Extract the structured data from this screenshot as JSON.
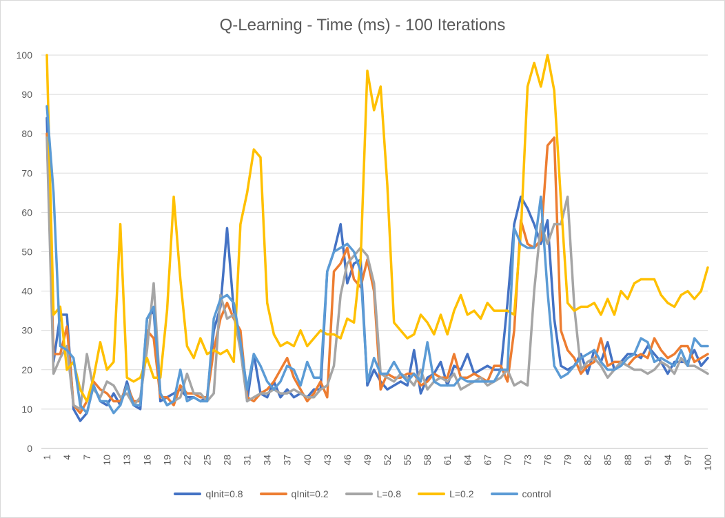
{
  "chart_data": {
    "type": "line",
    "title": "Q-Learning - Time (ms) - 100 Iterations",
    "xlabel": "",
    "ylabel": "",
    "ylim": [
      0,
      100
    ],
    "yticks": [
      0,
      10,
      20,
      30,
      40,
      50,
      60,
      70,
      80,
      90,
      100
    ],
    "xtick_labels": [
      "1",
      "4",
      "7",
      "10",
      "13",
      "16",
      "19",
      "22",
      "25",
      "28",
      "31",
      "34",
      "37",
      "40",
      "43",
      "46",
      "49",
      "52",
      "55",
      "58",
      "61",
      "64",
      "67",
      "70",
      "73",
      "76",
      "79",
      "82",
      "85",
      "88",
      "91",
      "94",
      "97",
      "100"
    ],
    "grid": "horizontal",
    "legend_position": "bottom",
    "x": [
      1,
      2,
      3,
      4,
      5,
      6,
      7,
      8,
      9,
      10,
      11,
      12,
      13,
      14,
      15,
      16,
      17,
      18,
      19,
      20,
      21,
      22,
      23,
      24,
      25,
      26,
      27,
      28,
      29,
      30,
      31,
      32,
      33,
      34,
      35,
      36,
      37,
      38,
      39,
      40,
      41,
      42,
      43,
      44,
      45,
      46,
      47,
      48,
      49,
      50,
      51,
      52,
      53,
      54,
      55,
      56,
      57,
      58,
      59,
      60,
      61,
      62,
      63,
      64,
      65,
      66,
      67,
      68,
      69,
      70,
      71,
      72,
      73,
      74,
      75,
      76,
      77,
      78,
      79,
      80,
      81,
      82,
      83,
      84,
      85,
      86,
      87,
      88,
      89,
      90,
      91,
      92,
      93,
      94,
      95,
      96,
      97,
      98,
      99,
      100
    ],
    "series": [
      {
        "name": "qInit=0.8",
        "color": "#4472C4",
        "values": [
          84,
          22,
          34,
          34,
          10,
          7,
          9,
          16,
          12,
          11,
          14,
          11,
          17,
          11,
          10,
          33,
          35,
          12,
          13,
          14,
          15,
          13,
          13,
          12,
          13,
          30,
          36,
          56,
          35,
          28,
          12,
          24,
          14,
          13,
          17,
          13,
          15,
          13,
          14,
          13,
          15,
          15,
          45,
          50,
          57,
          42,
          47,
          48,
          16,
          20,
          17,
          15,
          16,
          17,
          16,
          25,
          14,
          18,
          19,
          22,
          16,
          21,
          20,
          24,
          19,
          20,
          21,
          20,
          20,
          37,
          57,
          64,
          61,
          57,
          52,
          58,
          33,
          21,
          20,
          21,
          24,
          19,
          25,
          22,
          27,
          20,
          22,
          24,
          24,
          23,
          26,
          24,
          22,
          19,
          22,
          22,
          22,
          25,
          21,
          23
        ]
      },
      {
        "name": "qInit=0.2",
        "color": "#ED7D31",
        "values": [
          80,
          24,
          24,
          31,
          11,
          9,
          12,
          17,
          15,
          14,
          12,
          12,
          16,
          12,
          12,
          30,
          28,
          13,
          13,
          11,
          16,
          14,
          14,
          13,
          13,
          25,
          33,
          37,
          33,
          30,
          13,
          12,
          14,
          15,
          17,
          20,
          23,
          18,
          15,
          12,
          14,
          17,
          13,
          45,
          47,
          51,
          43,
          41,
          48,
          40,
          15,
          19,
          18,
          18,
          19,
          19,
          16,
          17,
          19,
          18,
          18,
          24,
          18,
          18,
          19,
          18,
          17,
          21,
          21,
          17,
          30,
          58,
          52,
          51,
          53,
          77,
          79,
          30,
          25,
          23,
          19,
          21,
          22,
          28,
          21,
          22,
          22,
          21,
          23,
          24,
          23,
          28,
          25,
          23,
          24,
          26,
          26,
          22,
          23,
          24
        ]
      },
      {
        "name": "L=0.8",
        "color": "#A5A5A5",
        "values": [
          79,
          19,
          23,
          26,
          11,
          10,
          24,
          15,
          13,
          17,
          16,
          13,
          14,
          11,
          13,
          25,
          42,
          14,
          11,
          12,
          13,
          19,
          14,
          14,
          12,
          14,
          39,
          33,
          34,
          25,
          12,
          13,
          14,
          14,
          15,
          14,
          14,
          15,
          14,
          13,
          13,
          15,
          16,
          21,
          39,
          47,
          49,
          51,
          49,
          42,
          19,
          18,
          17,
          19,
          18,
          16,
          20,
          15,
          17,
          18,
          17,
          19,
          15,
          16,
          17,
          18,
          16,
          17,
          18,
          20,
          16,
          17,
          16,
          40,
          57,
          52,
          57,
          57,
          64,
          36,
          20,
          22,
          23,
          21,
          18,
          20,
          22,
          21,
          20,
          20,
          19,
          20,
          22,
          21,
          19,
          23,
          21,
          21,
          20,
          19
        ]
      },
      {
        "name": "L=0.2",
        "color": "#FFC000",
        "values": [
          100,
          34,
          36,
          20,
          22,
          15,
          12,
          18,
          27,
          20,
          22,
          57,
          18,
          17,
          18,
          23,
          18,
          18,
          35,
          64,
          43,
          26,
          23,
          28,
          24,
          25,
          24,
          25,
          22,
          57,
          65,
          76,
          74,
          37,
          29,
          26,
          27,
          26,
          30,
          26,
          28,
          30,
          29,
          29,
          28,
          33,
          32,
          48,
          96,
          86,
          92,
          67,
          32,
          30,
          28,
          29,
          34,
          32,
          29,
          34,
          29,
          35,
          39,
          34,
          35,
          33,
          37,
          35,
          35,
          35,
          34,
          55,
          92,
          98,
          92,
          100,
          91,
          63,
          37,
          35,
          36,
          36,
          37,
          34,
          38,
          34,
          40,
          38,
          42,
          43,
          43,
          43,
          39,
          37,
          36,
          39,
          40,
          38,
          40,
          46
        ]
      },
      {
        "name": "control",
        "color": "#5B9BD5",
        "values": [
          87,
          65,
          26,
          25,
          23,
          11,
          9,
          16,
          12,
          12,
          9,
          11,
          16,
          11,
          11,
          33,
          36,
          14,
          11,
          12,
          20,
          12,
          13,
          12,
          12,
          33,
          38,
          39,
          37,
          27,
          15,
          24,
          21,
          17,
          15,
          17,
          21,
          20,
          16,
          22,
          18,
          18,
          45,
          50,
          51,
          52,
          50,
          45,
          17,
          23,
          19,
          19,
          22,
          19,
          17,
          19,
          17,
          27,
          17,
          16,
          16,
          16,
          18,
          17,
          17,
          17,
          17,
          17,
          20,
          20,
          56,
          52,
          51,
          51,
          64,
          40,
          21,
          18,
          19,
          21,
          23,
          24,
          25,
          22,
          20,
          20,
          21,
          23,
          24,
          28,
          27,
          22,
          23,
          22,
          21,
          25,
          21,
          28,
          26,
          26
        ]
      }
    ]
  }
}
